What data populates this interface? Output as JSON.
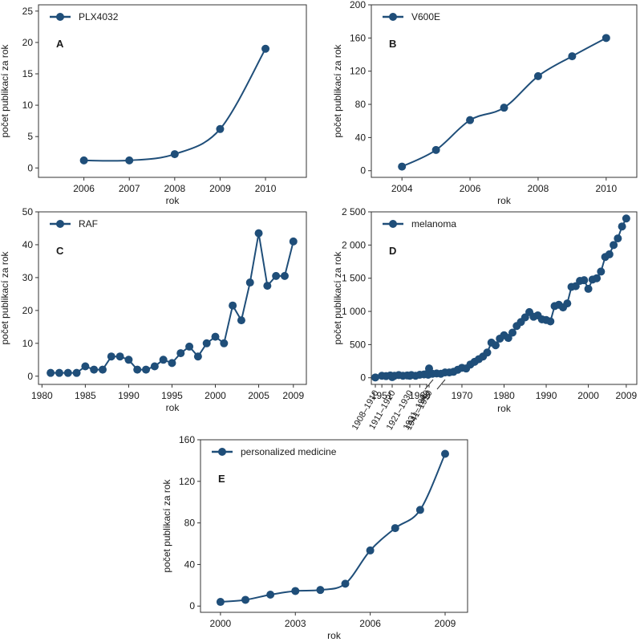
{
  "colors": {
    "series": "#1f4e79",
    "axis": "#333333",
    "text": "#1a1a1a"
  },
  "chart_data": [
    {
      "panel": "A",
      "type": "line",
      "series": [
        {
          "name": "PLX4032",
          "x": [
            2006,
            2007,
            2008,
            2009,
            2010
          ],
          "y": [
            1.2,
            1.2,
            2.2,
            6.2,
            19
          ]
        }
      ],
      "xlabel": "rok",
      "ylabel": "počet publikací za rok",
      "xticks": [
        2006,
        2007,
        2008,
        2009,
        2010
      ],
      "yticks": [
        0,
        5,
        10,
        15,
        20,
        25
      ],
      "xlim": [
        2005,
        2010.9
      ],
      "ylim": [
        -1.5,
        26
      ],
      "legend": "top-left",
      "grid": false
    },
    {
      "panel": "B",
      "type": "line",
      "series": [
        {
          "name": "V600E",
          "x": [
            2004,
            2005,
            2006,
            2007,
            2008,
            2009,
            2010
          ],
          "y": [
            5,
            25,
            61,
            76,
            114,
            138,
            160
          ]
        }
      ],
      "xlabel": "rok",
      "ylabel": "počet publikací za rok",
      "xticks": [
        2004,
        2006,
        2008,
        2010
      ],
      "yticks": [
        0,
        40,
        80,
        120,
        160,
        200
      ],
      "xlim": [
        2003.1,
        2010.9
      ],
      "ylim": [
        -8,
        200
      ],
      "legend": "top-left",
      "grid": false
    },
    {
      "panel": "C",
      "type": "line",
      "series": [
        {
          "name": "RAF",
          "x": [
            1981,
            1982,
            1983,
            1984,
            1985,
            1986,
            1987,
            1988,
            1989,
            1990,
            1991,
            1992,
            1993,
            1994,
            1995,
            1996,
            1997,
            1998,
            1999,
            2000,
            2001,
            2002,
            2003,
            2004,
            2005,
            2006,
            2007,
            2008,
            2009
          ],
          "y": [
            1,
            1,
            1,
            1,
            3,
            2,
            2,
            6,
            6,
            5,
            2,
            2,
            3,
            5,
            4,
            7,
            9,
            6,
            10,
            12,
            10,
            21.5,
            17,
            28.5,
            43.5,
            27.5,
            30.5,
            30.5,
            41
          ]
        }
      ],
      "xlabel": "rok",
      "ylabel": "počet publikací za rok",
      "xticks": [
        1980,
        1985,
        1990,
        1995,
        2000,
        2005,
        2009
      ],
      "yticks": [
        0,
        10,
        20,
        30,
        40,
        50
      ],
      "xlim": [
        1979.6,
        2010.5
      ],
      "ylim": [
        -2.5,
        50
      ],
      "legend": "top-left",
      "grid": false
    },
    {
      "panel": "D",
      "type": "line",
      "x_break": true,
      "categories": [
        "1908–1910",
        "1911–1920",
        "1921–1930",
        "1931–1940",
        "1941–1950"
      ],
      "category_values": [
        5,
        10,
        30,
        55,
        140
      ],
      "series": [
        {
          "name": "melanoma",
          "x": [
            1951,
            1952,
            1953,
            1954,
            1955,
            1956,
            1957,
            1958,
            1959,
            1960,
            1961,
            1962,
            1963,
            1964,
            1965,
            1966,
            1967,
            1968,
            1969,
            1970,
            1971,
            1972,
            1973,
            1974,
            1975,
            1976,
            1977,
            1978,
            1979,
            1980,
            1981,
            1982,
            1983,
            1984,
            1985,
            1986,
            1987,
            1988,
            1989,
            1990,
            1991,
            1992,
            1993,
            1994,
            1995,
            1996,
            1997,
            1998,
            1999,
            2000,
            2001,
            2002,
            2003,
            2004,
            2005,
            2006,
            2007,
            2008,
            2009
          ],
          "y": [
            30,
            25,
            35,
            30,
            40,
            30,
            35,
            40,
            30,
            45,
            50,
            45,
            60,
            65,
            60,
            80,
            80,
            90,
            120,
            150,
            140,
            200,
            240,
            280,
            320,
            380,
            530,
            490,
            590,
            640,
            600,
            680,
            780,
            840,
            910,
            990,
            920,
            940,
            880,
            870,
            850,
            1080,
            1100,
            1060,
            1120,
            1370,
            1380,
            1460,
            1470,
            1340,
            1480,
            1500,
            1600,
            1820,
            1860,
            2000,
            2100,
            2280,
            2400
          ]
        }
      ],
      "xlabel": "rok",
      "ylabel": "počet publikací za rok",
      "xticks": [
        1951,
        1960,
        1970,
        1980,
        1990,
        2000,
        2009
      ],
      "yticks": [
        0,
        500,
        1000,
        1500,
        2000,
        2500
      ],
      "ytick_labels": [
        "0",
        "500",
        "1 000",
        "1 500",
        "2 000",
        "2 500"
      ],
      "xlim": [
        1948.5,
        2011.5
      ],
      "ylim": [
        -100,
        2500
      ],
      "legend": "top-left",
      "grid": false
    },
    {
      "panel": "E",
      "type": "line",
      "series": [
        {
          "name": "personalized medicine",
          "x": [
            2000,
            2001,
            2002,
            2003,
            2004,
            2005,
            2006,
            2007,
            2008,
            2009
          ],
          "y": [
            4,
            6,
            11,
            14.5,
            15.5,
            21.5,
            53.5,
            75,
            92.5,
            146.5
          ]
        }
      ],
      "xlabel": "rok",
      "ylabel": "počet publikací za rok",
      "xticks": [
        2000,
        2003,
        2006,
        2009
      ],
      "yticks": [
        0,
        40,
        80,
        120,
        160
      ],
      "xlim": [
        1999.2,
        2009.9
      ],
      "ylim": [
        -6,
        160
      ],
      "legend": "top-left",
      "grid": false
    }
  ]
}
